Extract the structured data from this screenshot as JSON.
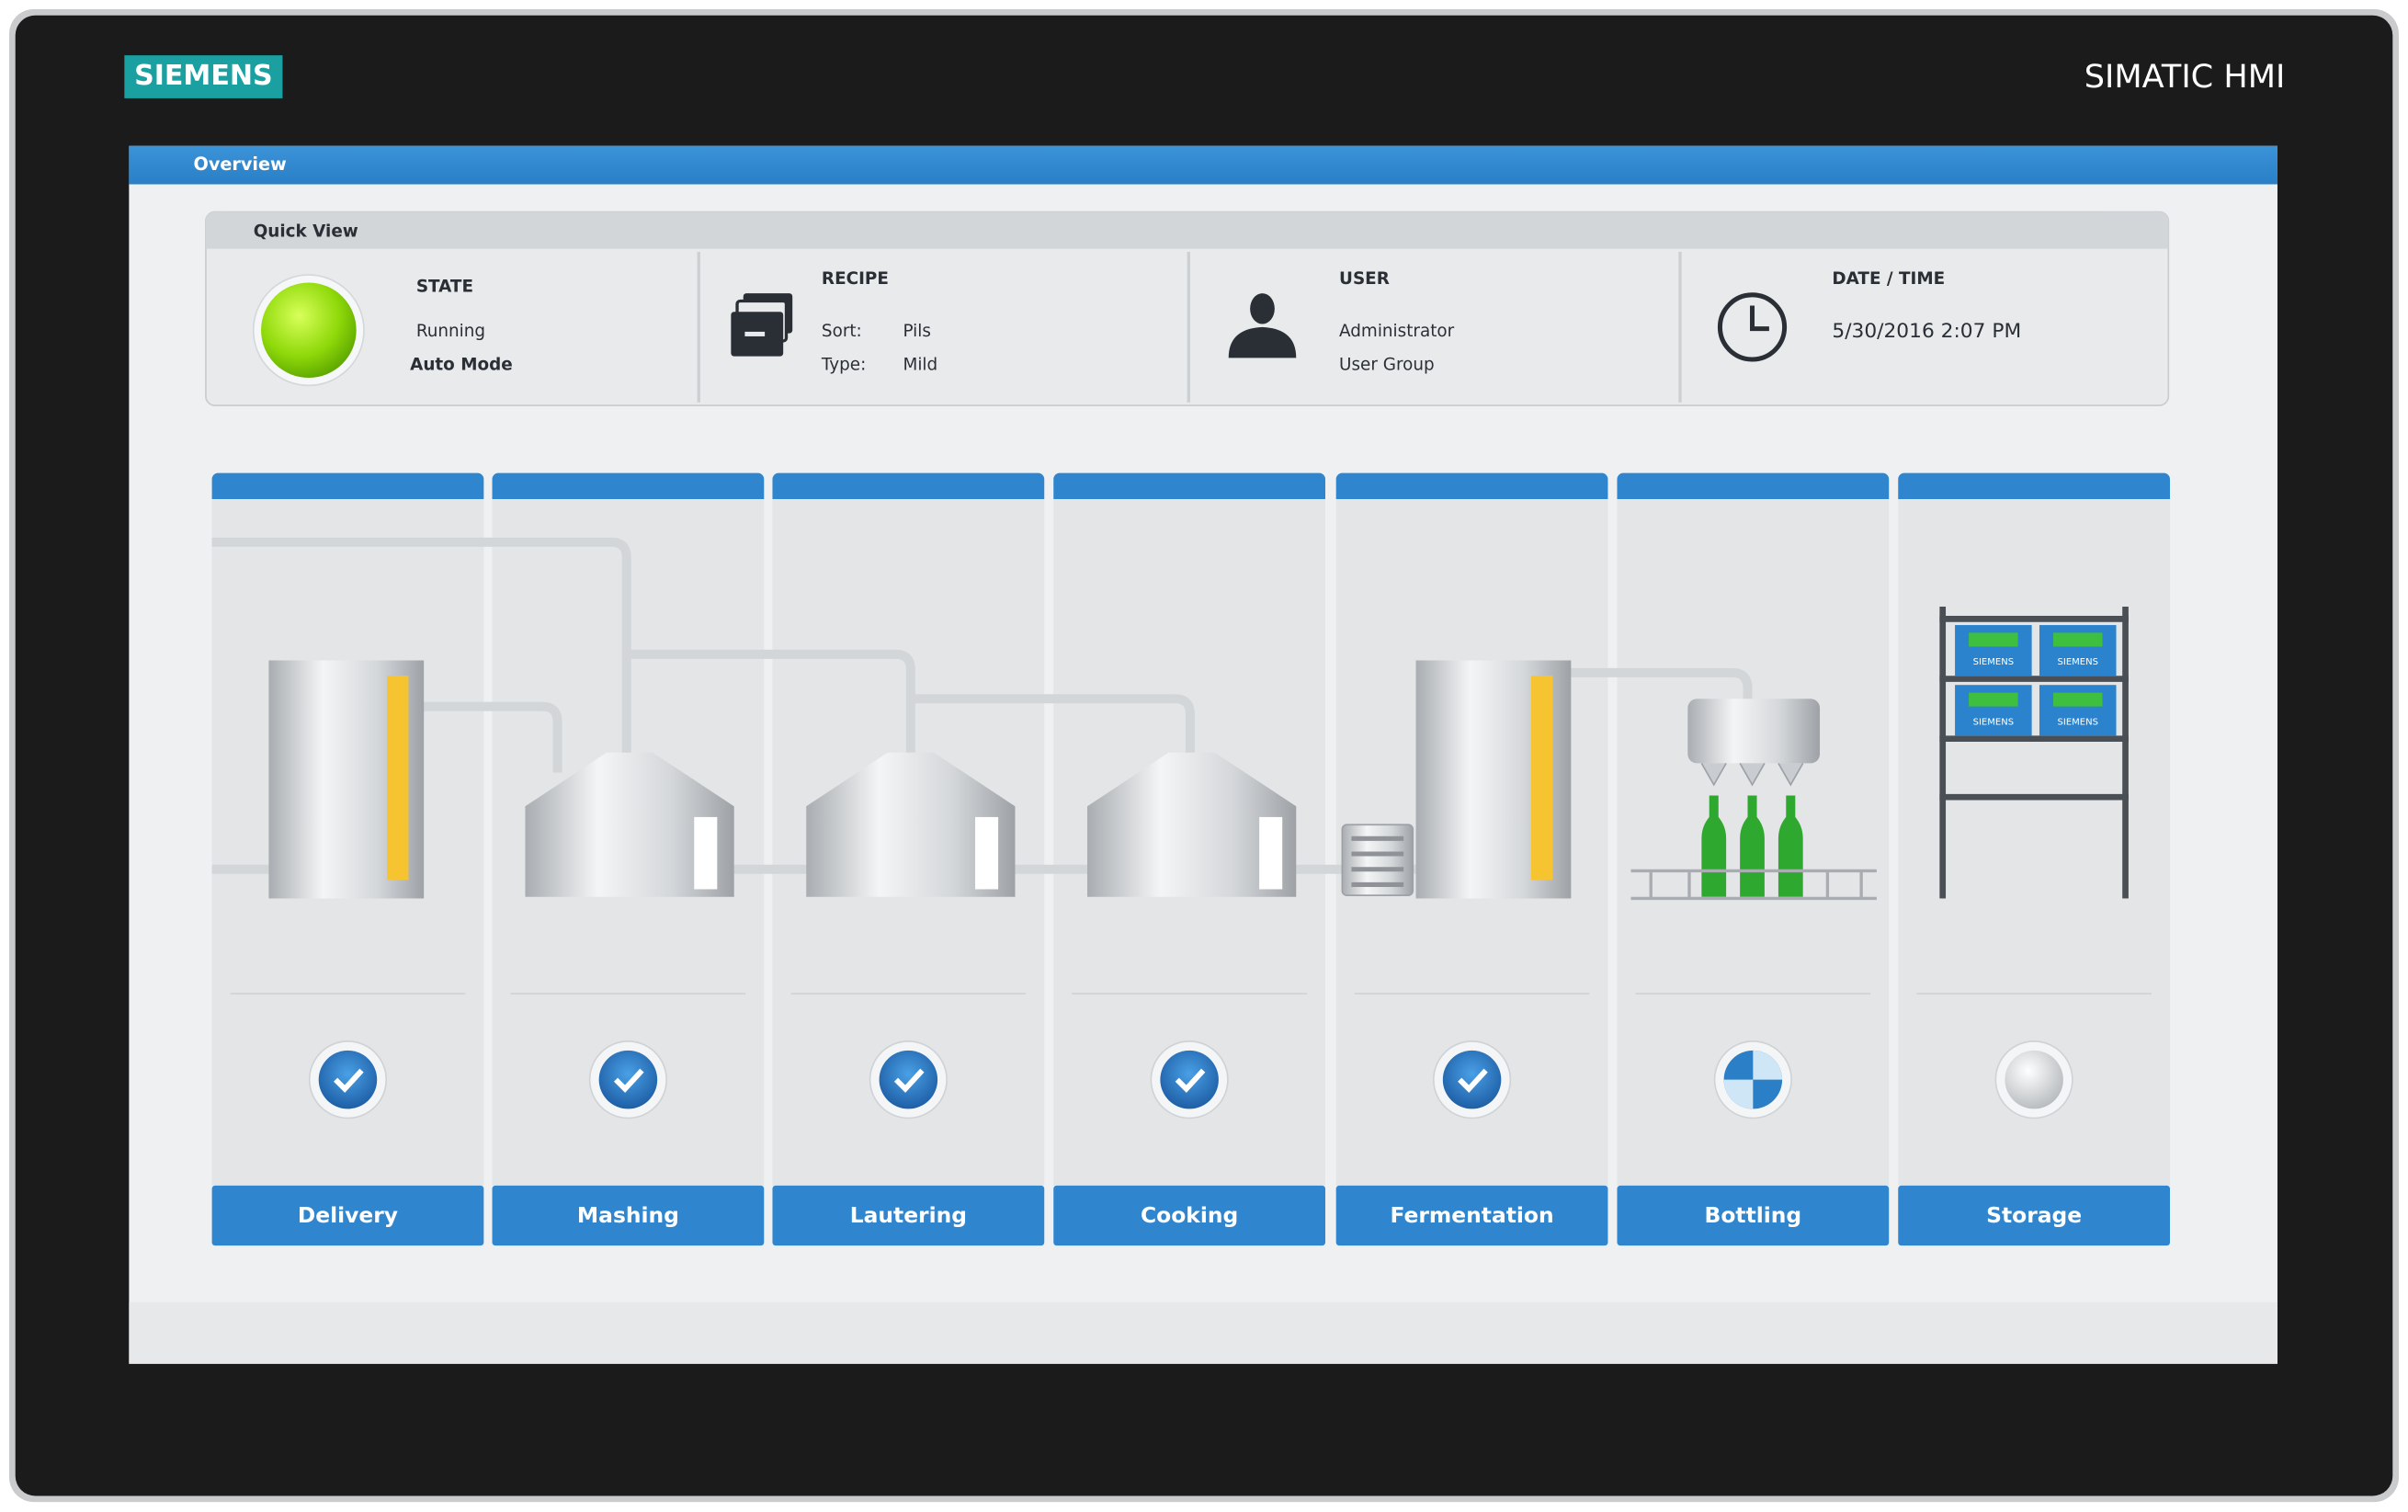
{
  "brand": "SIEMENS",
  "product": "SIMATIC HMI",
  "screen_title": "Overview",
  "quick_view": {
    "title": "Quick View",
    "state": {
      "label": "STATE",
      "status": "Running",
      "mode": "Auto Mode"
    },
    "recipe": {
      "label": "RECIPE",
      "sort_label": "Sort:",
      "sort_value": "Pils",
      "type_label": "Type:",
      "type_value": "Mild"
    },
    "user": {
      "label": "USER",
      "name": "Administrator",
      "group": "User Group"
    },
    "datetime": {
      "label": "DATE / TIME",
      "value": "5/30/2016 2:07 PM"
    }
  },
  "stations": [
    "Delivery",
    "Mashing",
    "Lautering",
    "Cooking",
    "Fermentation",
    "Bottling",
    "Storage"
  ],
  "crate_label": "SIEMENS"
}
